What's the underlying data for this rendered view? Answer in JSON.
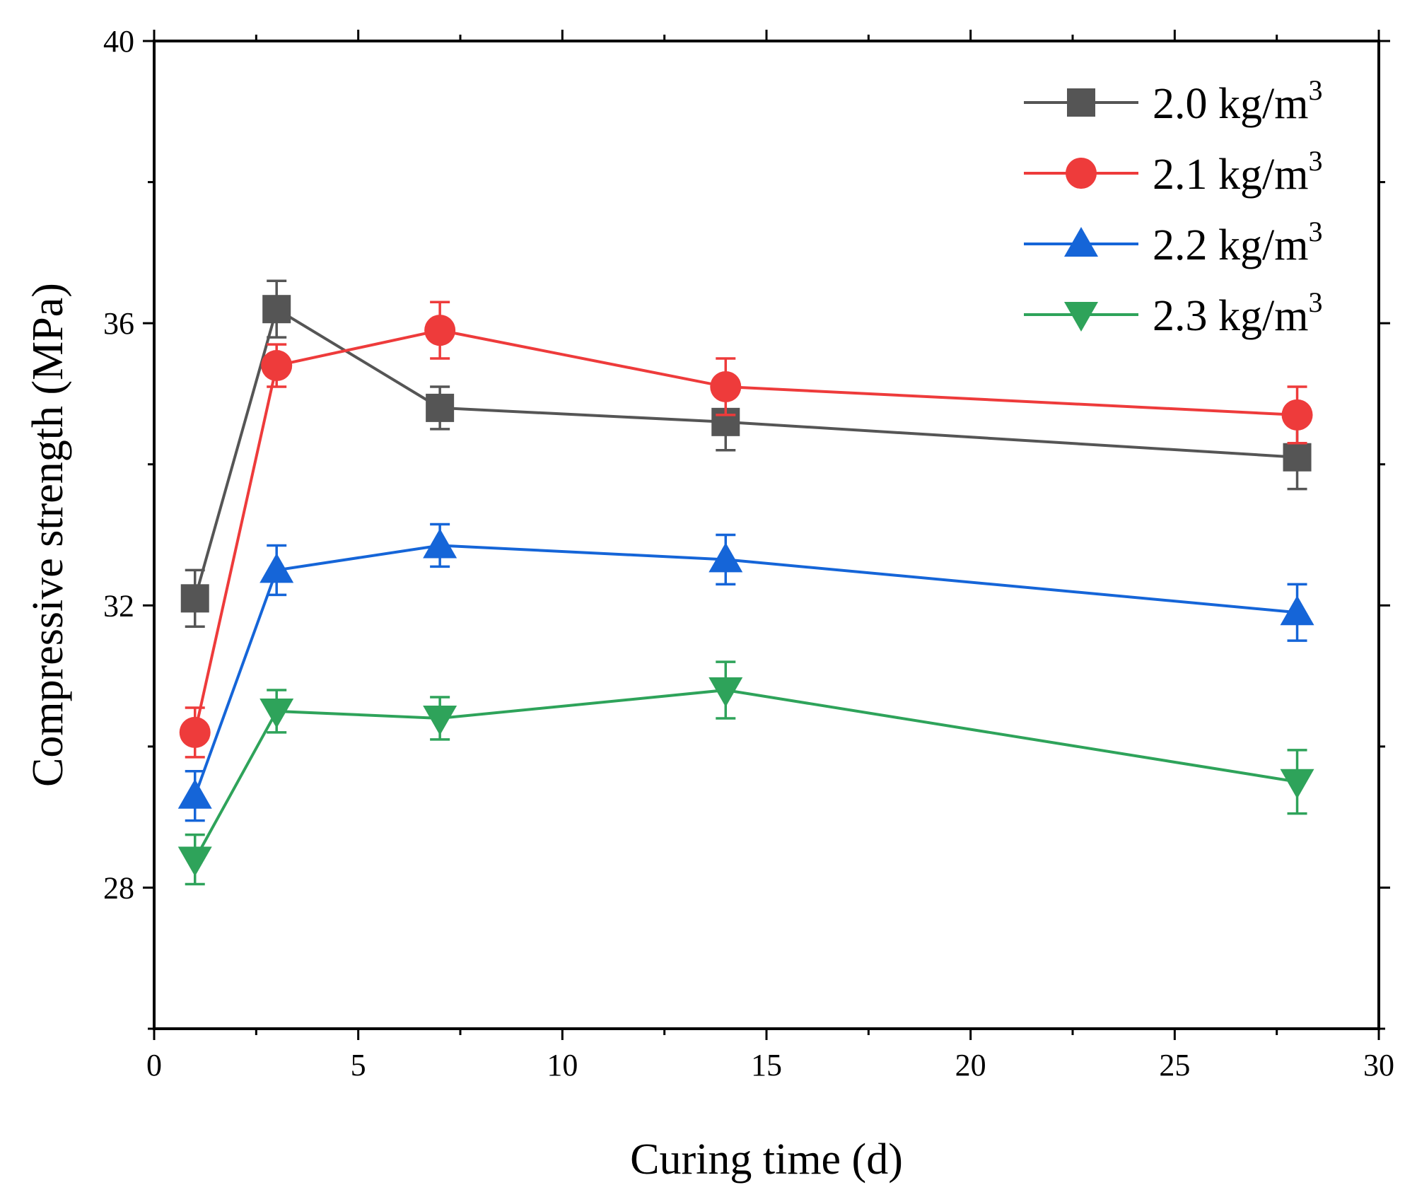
{
  "chart_data": {
    "type": "line",
    "title": "",
    "xlabel": "Curing time (d)",
    "ylabel": "Compressive strength (MPa)",
    "xlim": [
      0,
      30
    ],
    "ylim": [
      26,
      40
    ],
    "xticks": [
      0,
      5,
      10,
      15,
      20,
      25,
      30
    ],
    "xtick_labels": [
      "0",
      "5",
      "10",
      "15",
      "20",
      "25",
      "30"
    ],
    "yticks": [
      28,
      32,
      36,
      40
    ],
    "ytick_labels": [
      "28",
      "32",
      "36",
      "40"
    ],
    "x_minor_step": 2.5,
    "y_minor_step": 2,
    "grid": false,
    "legend_position": "top-right",
    "x": [
      1,
      3,
      7,
      14,
      28
    ],
    "series": [
      {
        "name": "2.0 kg/m",
        "sup": "3",
        "color": "#555555",
        "marker": "square",
        "values": [
          32.1,
          36.2,
          34.8,
          34.6,
          34.1
        ],
        "errors": [
          0.4,
          0.4,
          0.3,
          0.4,
          0.45
        ]
      },
      {
        "name": "2.1 kg/m",
        "sup": "3",
        "color": "#ee3b3b",
        "marker": "circle",
        "values": [
          30.2,
          35.4,
          35.9,
          35.1,
          34.7
        ],
        "errors": [
          0.35,
          0.3,
          0.4,
          0.4,
          0.4
        ]
      },
      {
        "name": "2.2 kg/m",
        "sup": "3",
        "color": "#1565d8",
        "marker": "triangle-up",
        "values": [
          29.3,
          32.5,
          32.85,
          32.65,
          31.9
        ],
        "errors": [
          0.35,
          0.35,
          0.3,
          0.35,
          0.4
        ]
      },
      {
        "name": "2.3 kg/m",
        "sup": "3",
        "color": "#2ea35a",
        "marker": "triangle-down",
        "values": [
          28.4,
          30.5,
          30.4,
          30.8,
          29.5
        ],
        "errors": [
          0.35,
          0.3,
          0.3,
          0.4,
          0.45
        ]
      }
    ]
  }
}
